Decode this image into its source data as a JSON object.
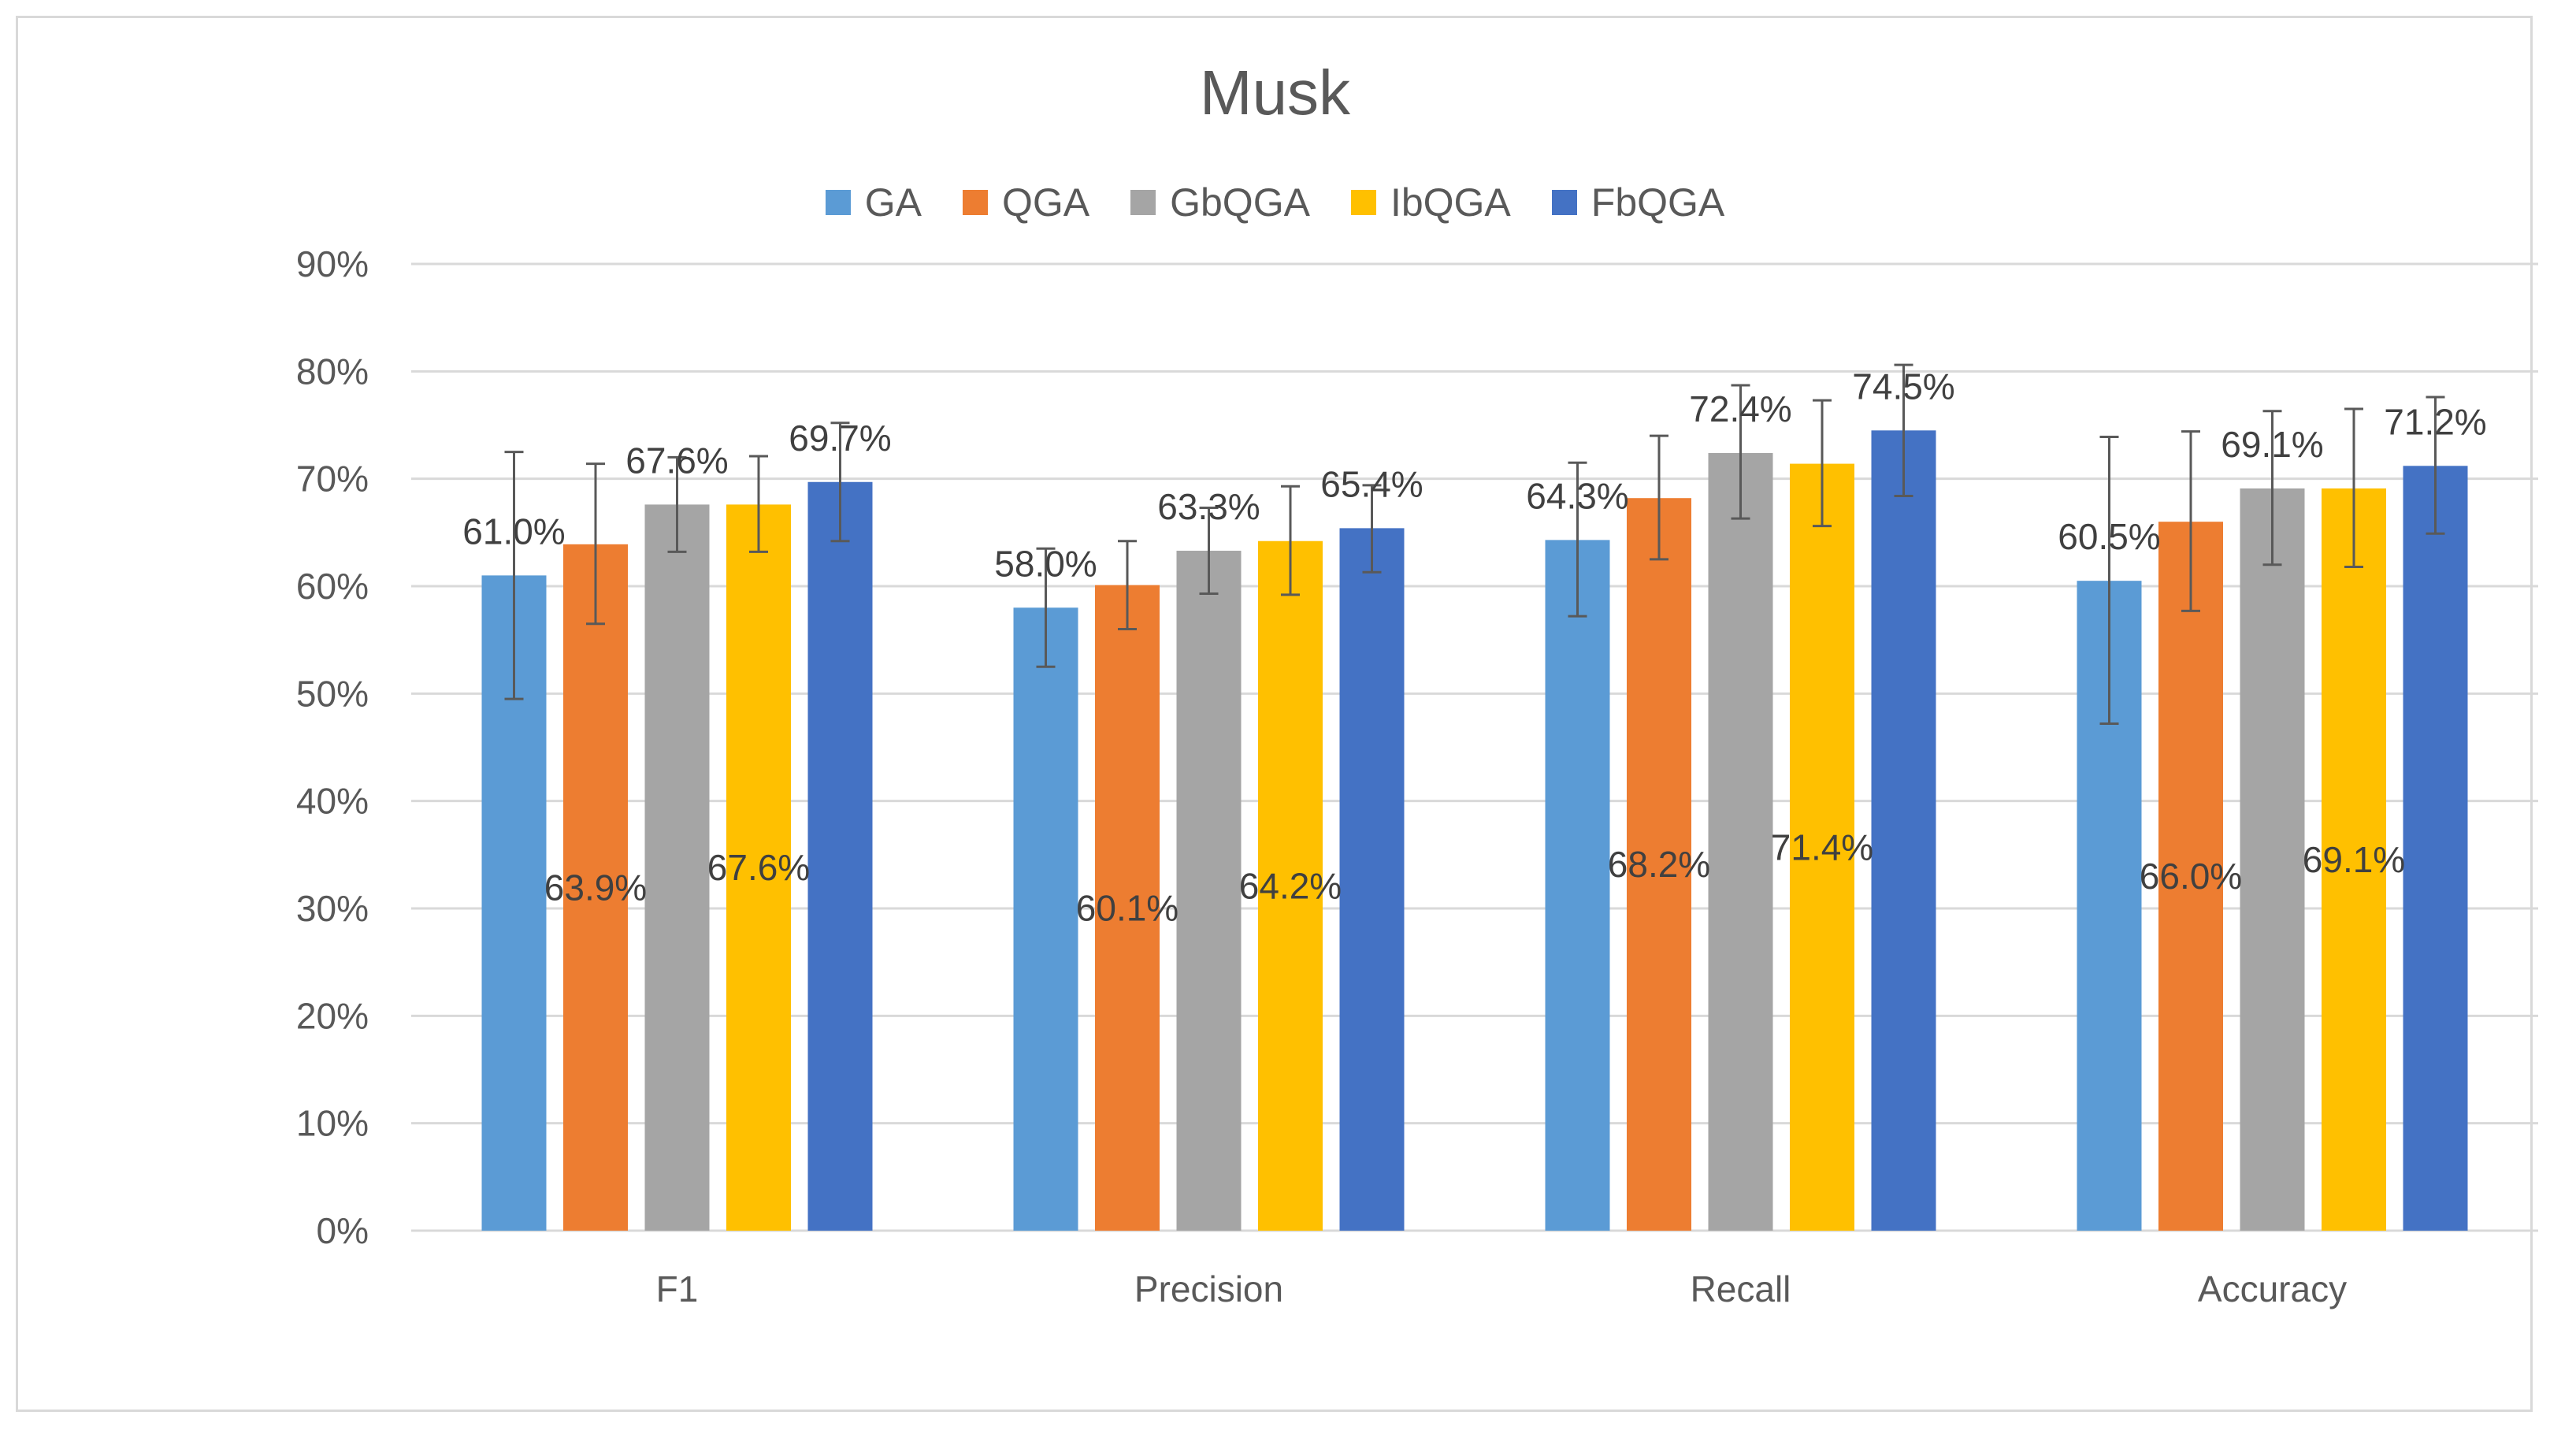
{
  "chart_data": {
    "type": "bar",
    "title": "Musk",
    "categories": [
      "F1",
      "Precision",
      "Recall",
      "Accuracy"
    ],
    "yticks": [
      "0%",
      "10%",
      "20%",
      "30%",
      "40%",
      "50%",
      "60%",
      "70%",
      "80%",
      "90%"
    ],
    "ylim": [
      0,
      90
    ],
    "grid": true,
    "legend_position": "top",
    "series": [
      {
        "name": "GA",
        "color": "#5b9bd5",
        "values": [
          61.0,
          58.0,
          64.3,
          60.5
        ],
        "err_low": [
          49.5,
          52.5,
          57.2,
          47.2
        ],
        "err_high": [
          72.5,
          63.5,
          71.5,
          73.9
        ],
        "labels": [
          "61.0%",
          "58.0%",
          "64.3%",
          "60.5%"
        ],
        "label_pos": "top"
      },
      {
        "name": "QGA",
        "color": "#ed7d31",
        "values": [
          63.9,
          60.1,
          68.2,
          66.0
        ],
        "err_low": [
          56.5,
          56.0,
          62.5,
          57.7
        ],
        "err_high": [
          71.4,
          64.2,
          74.0,
          74.4
        ],
        "labels": [
          "63.9%",
          "60.1%",
          "68.2%",
          "66.0%"
        ],
        "label_pos": "middle"
      },
      {
        "name": "GbQGA",
        "color": "#a5a5a5",
        "values": [
          67.6,
          63.3,
          72.4,
          69.1
        ],
        "err_low": [
          63.2,
          59.3,
          66.3,
          62.0
        ],
        "err_high": [
          72.0,
          67.3,
          78.7,
          76.3
        ],
        "labels": [
          "67.6%",
          "63.3%",
          "72.4%",
          "69.1%"
        ],
        "label_pos": "top"
      },
      {
        "name": "IbQGA",
        "color": "#ffc000",
        "values": [
          67.6,
          64.2,
          71.4,
          69.1
        ],
        "err_low": [
          63.2,
          59.2,
          65.6,
          61.8
        ],
        "err_high": [
          72.1,
          69.3,
          77.3,
          76.5
        ],
        "labels": [
          "67.6%",
          "64.2%",
          "71.4%",
          "69.1%"
        ],
        "label_pos": "middle"
      },
      {
        "name": "FbQGA",
        "color": "#4472c4",
        "values": [
          69.7,
          65.4,
          74.5,
          71.2
        ],
        "err_low": [
          64.2,
          61.3,
          68.4,
          64.9
        ],
        "err_high": [
          75.2,
          69.4,
          80.6,
          77.6
        ],
        "labels": [
          "69.7%",
          "65.4%",
          "74.5%",
          "71.2%"
        ],
        "label_pos": "top"
      }
    ]
  }
}
